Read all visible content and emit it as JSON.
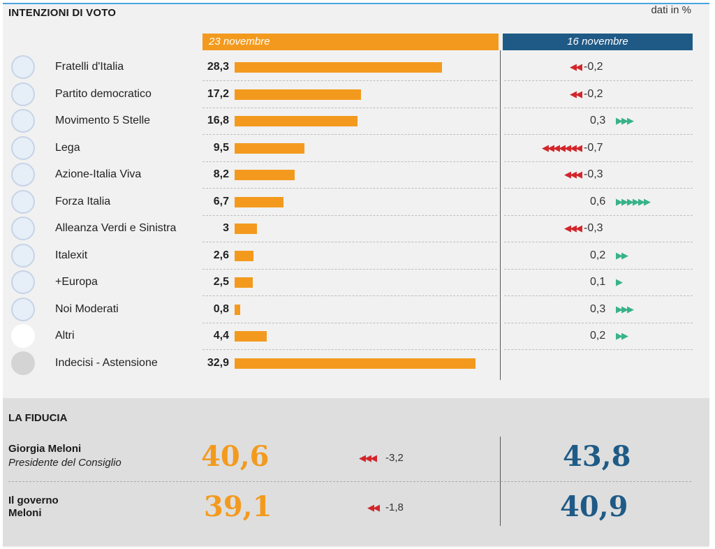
{
  "header": {
    "title": "INTENZIONI DI VOTO",
    "unit_note": "dati in %"
  },
  "columns": {
    "current": "23 novembre",
    "previous": "16 novembre"
  },
  "colors": {
    "current": "#f39a1e",
    "previous": "#1f5a86",
    "down": "#d2262b",
    "up": "#37b28a"
  },
  "chart_data": {
    "type": "bar",
    "title": "INTENZIONI DI VOTO",
    "unit": "dati in %",
    "categories": [
      "Fratelli d'Italia",
      "Partito democratico",
      "Movimento 5 Stelle",
      "Lega",
      "Azione-Italia Viva",
      "Forza Italia",
      "Alleanza Verdi e Sinistra",
      "Italexit",
      "+Europa",
      "Noi Moderati",
      "Altri",
      "Indecisi - Astensione"
    ],
    "series": [
      {
        "name": "23 novembre",
        "values": [
          28.3,
          17.2,
          16.8,
          9.5,
          8.2,
          6.7,
          3,
          2.6,
          2.5,
          0.8,
          4.4,
          32.9
        ]
      }
    ],
    "rows": [
      {
        "party": "Fratelli d'Italia",
        "value": "28,3",
        "num": 28.3,
        "change": "-0,2",
        "arrows": 2,
        "dir": "down",
        "logo": "fratelli-ditalia-logo"
      },
      {
        "party": "Partito democratico",
        "value": "17,2",
        "num": 17.2,
        "change": "-0,2",
        "arrows": 2,
        "dir": "down",
        "logo": "partito-democratico-logo"
      },
      {
        "party": "Movimento 5 Stelle",
        "value": "16,8",
        "num": 16.8,
        "change": "0,3",
        "arrows": 3,
        "dir": "up",
        "logo": "movimento-5-stelle-logo"
      },
      {
        "party": "Lega",
        "value": "9,5",
        "num": 9.5,
        "change": "-0,7",
        "arrows": 7,
        "dir": "down",
        "logo": "lega-logo"
      },
      {
        "party": "Azione-Italia Viva",
        "value": "8,2",
        "num": 8.2,
        "change": "-0,3",
        "arrows": 3,
        "dir": "down",
        "logo": "azione-italia-viva-logo"
      },
      {
        "party": "Forza Italia",
        "value": "6,7",
        "num": 6.7,
        "change": "0,6",
        "arrows": 6,
        "dir": "up",
        "logo": "forza-italia-logo"
      },
      {
        "party": "Alleanza Verdi e Sinistra",
        "value": "3",
        "num": 3,
        "change": "-0,3",
        "arrows": 3,
        "dir": "down",
        "logo": "alleanza-verdi-sinistra-logo"
      },
      {
        "party": "Italexit",
        "value": "2,6",
        "num": 2.6,
        "change": "0,2",
        "arrows": 2,
        "dir": "up",
        "logo": "italexit-logo"
      },
      {
        "party": "+Europa",
        "value": "2,5",
        "num": 2.5,
        "change": "0,1",
        "arrows": 1,
        "dir": "up",
        "logo": "piu-europa-logo"
      },
      {
        "party": "Noi Moderati",
        "value": "0,8",
        "num": 0.8,
        "change": "0,3",
        "arrows": 3,
        "dir": "up",
        "logo": "noi-moderati-logo"
      },
      {
        "party": "Altri",
        "value": "4,4",
        "num": 4.4,
        "change": "0,2",
        "arrows": 2,
        "dir": "up",
        "logo": "blank-white-circle"
      },
      {
        "party": "Indecisi - Astensione",
        "value": "32,9",
        "num": 32.9,
        "change": "",
        "arrows": 0,
        "dir": "none",
        "logo": "blank-gray-circle"
      }
    ]
  },
  "fiducia": {
    "title": "LA FIDUCIA",
    "items": [
      {
        "name": "Giorgia Meloni",
        "role": "Presidente del Consiglio",
        "current": "40,6",
        "change": "-3,2",
        "arrows": 3,
        "previous": "43,8"
      },
      {
        "name_line1": "Il governo",
        "name_line2": "Meloni",
        "current": "39,1",
        "change": "-1,8",
        "arrows": 2,
        "previous": "40,9"
      }
    ]
  }
}
